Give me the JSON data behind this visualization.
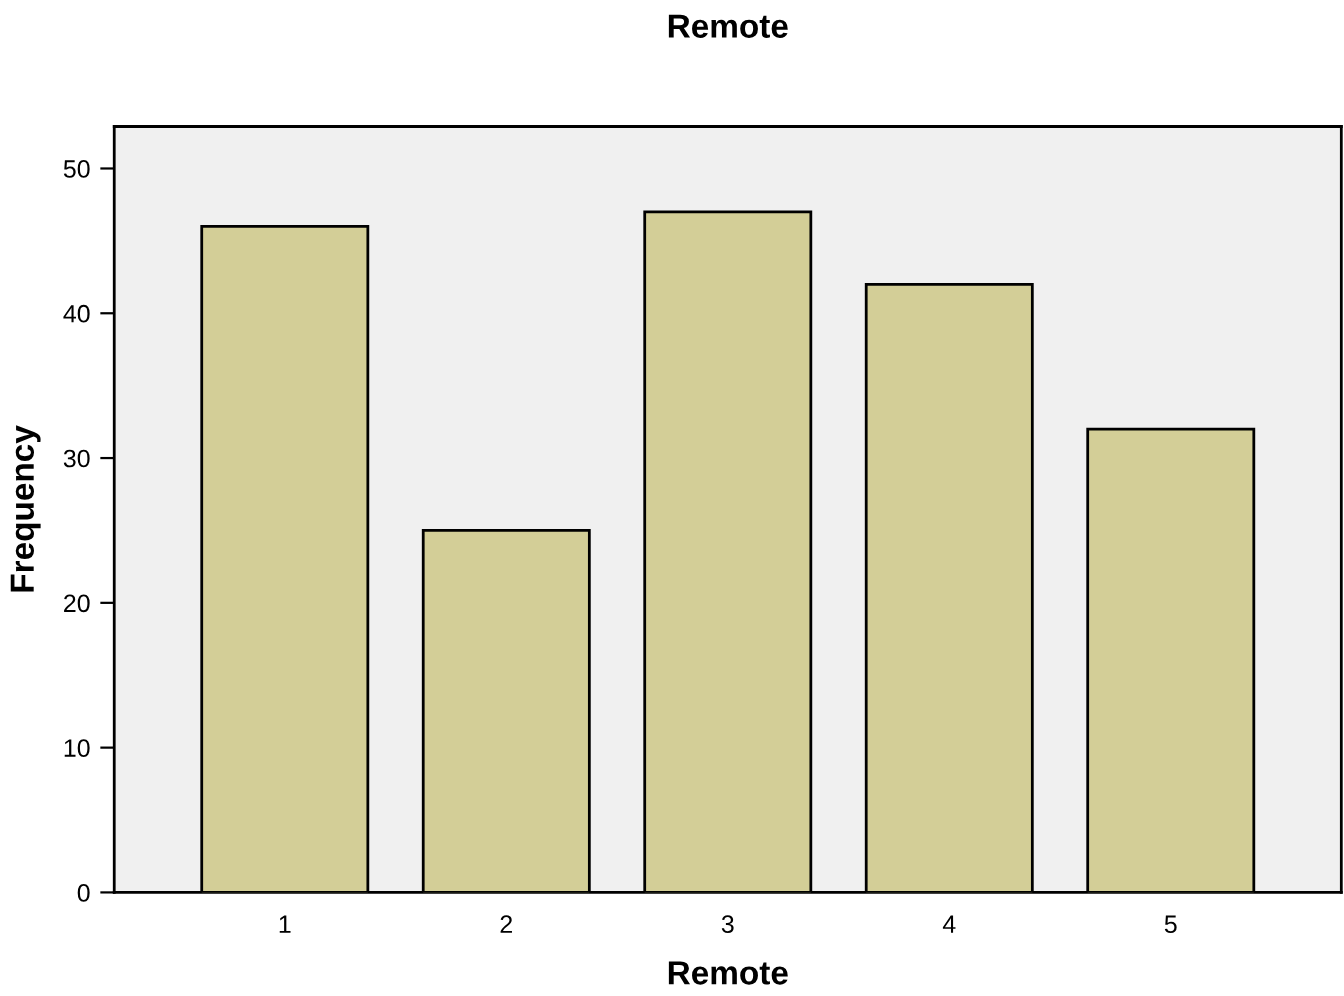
{
  "chart_data": {
    "type": "bar",
    "title": "Remote",
    "xlabel": "Remote",
    "ylabel": "Frequency",
    "categories": [
      "1",
      "2",
      "3",
      "4",
      "5"
    ],
    "values": [
      46,
      25,
      47,
      42,
      32
    ],
    "color": "#d3ce97",
    "ylim": [
      0,
      52.9
    ],
    "yticks": [
      0,
      10,
      20,
      30,
      40,
      50
    ],
    "grid": false,
    "legend": false
  }
}
